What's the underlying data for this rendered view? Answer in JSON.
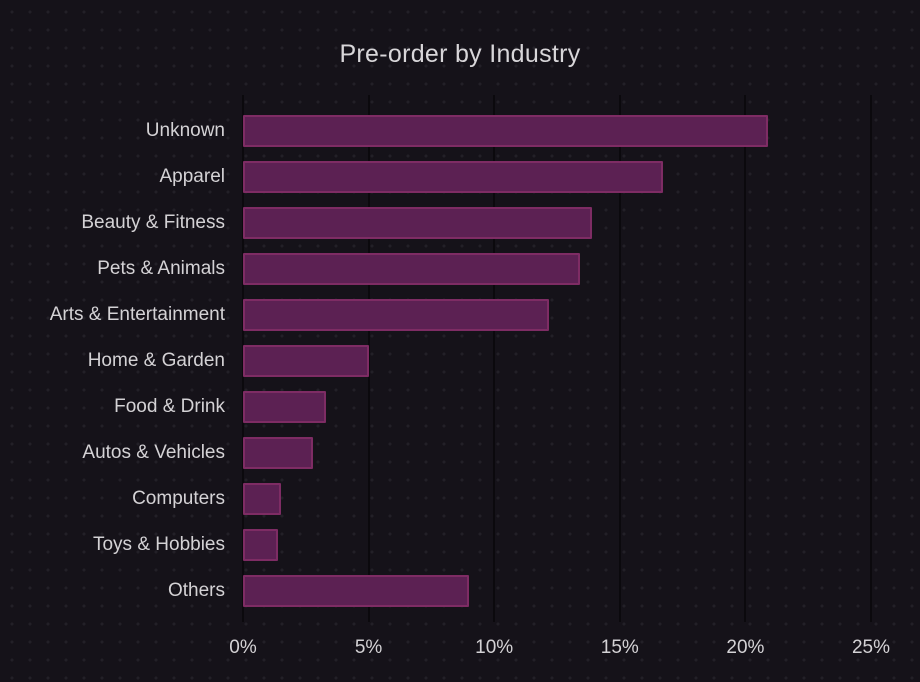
{
  "title": "Pre-order by Industry",
  "colors": {
    "background": "#151219",
    "bar_fill": "#5c2153",
    "bar_border": "#7e2c64",
    "text": "#d4d2d5"
  },
  "chart_data": {
    "type": "bar",
    "orientation": "horizontal",
    "title": "Pre-order by Industry",
    "categories": [
      "Unknown",
      "Apparel",
      "Beauty & Fitness",
      "Pets & Animals",
      "Arts & Entertainment",
      "Home & Garden",
      "Food & Drink",
      "Autos & Vehicles",
      "Computers",
      "Toys & Hobbies",
      "Others"
    ],
    "values": [
      20.9,
      16.7,
      13.9,
      13.4,
      12.2,
      5.0,
      3.3,
      2.8,
      1.5,
      1.4,
      9.0
    ],
    "value_unit": "%",
    "xlabel": "",
    "ylabel": "",
    "xlim": [
      0,
      25
    ],
    "x_ticks": [
      "0%",
      "5%",
      "10%",
      "15%",
      "20%",
      "25%"
    ],
    "x_tick_values": [
      0,
      5,
      10,
      15,
      20,
      25
    ],
    "grid": "faint-vertical",
    "legend": "none",
    "background_pattern": "dot-grid"
  }
}
